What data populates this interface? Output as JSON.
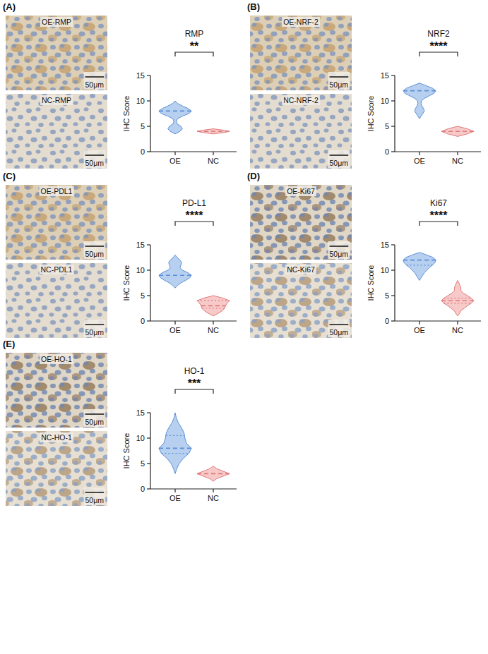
{
  "chart_data": [
    {
      "type": "violin",
      "panel_label": "(A)",
      "title": "RMP",
      "y_label": "IHC Score",
      "significance": "**",
      "images": [
        {
          "label": "OE-RMP",
          "scale_bar": "50μm"
        },
        {
          "label": "NC-RMP",
          "scale_bar": "50μm"
        }
      ],
      "categories": [
        "OE",
        "NC"
      ],
      "colors": [
        "#5b8fd6",
        "#e07a7a"
      ],
      "ylim": [
        0,
        15
      ],
      "yticks": [
        0,
        5,
        10,
        15
      ],
      "violins": [
        {
          "median": 8,
          "y": [
            3.5,
            4,
            4.5,
            5,
            5.5,
            6,
            6.5,
            7,
            7.5,
            8,
            8.5,
            9,
            9.5,
            10
          ],
          "density": [
            0,
            0.3,
            0.45,
            0.35,
            0.12,
            0.08,
            0.15,
            0.45,
            0.85,
            1,
            0.8,
            0.45,
            0.15,
            0
          ]
        },
        {
          "median": 4,
          "y": [
            3.5,
            3.75,
            4,
            4.25,
            4.5
          ],
          "density": [
            0,
            0.6,
            1,
            0.6,
            0
          ]
        }
      ]
    },
    {
      "type": "violin",
      "panel_label": "(B)",
      "title": "NRF2",
      "y_label": "IHC Score",
      "significance": "****",
      "images": [
        {
          "label": "OE-NRF-2",
          "scale_bar": "50μm"
        },
        {
          "label": "NC-NRF-2",
          "scale_bar": "50μm"
        }
      ],
      "categories": [
        "OE",
        "NC"
      ],
      "colors": [
        "#5b8fd6",
        "#e07a7a"
      ],
      "ylim": [
        0,
        15
      ],
      "yticks": [
        0,
        5,
        10,
        15
      ],
      "violins": [
        {
          "median": 12,
          "y": [
            6.5,
            7,
            7.5,
            8,
            8.5,
            9,
            9.5,
            10,
            10.5,
            11,
            11.5,
            12,
            12.5,
            13,
            13.5
          ],
          "density": [
            0,
            0.1,
            0.2,
            0.3,
            0.25,
            0.15,
            0.1,
            0.12,
            0.3,
            0.6,
            0.9,
            1,
            0.8,
            0.4,
            0
          ]
        },
        {
          "median": 4,
          "y": [
            3,
            3.5,
            4,
            4.5,
            5
          ],
          "density": [
            0,
            0.6,
            1,
            0.6,
            0
          ]
        }
      ]
    },
    {
      "type": "violin",
      "panel_label": "(C)",
      "title": "PD-L1",
      "y_label": "IHC Score",
      "significance": "****",
      "images": [
        {
          "label": "OE-PDL1",
          "scale_bar": "50μm"
        },
        {
          "label": "NC-PDL1",
          "scale_bar": "50μm"
        }
      ],
      "categories": [
        "OE",
        "NC"
      ],
      "colors": [
        "#5b8fd6",
        "#e07a7a"
      ],
      "ylim": [
        0,
        15
      ],
      "yticks": [
        0,
        5,
        10,
        15
      ],
      "violins": [
        {
          "median": 9,
          "y": [
            6.5,
            7,
            7.5,
            8,
            8.5,
            9,
            9.5,
            10,
            10.5,
            11,
            11.5,
            12,
            12.5,
            13
          ],
          "density": [
            0,
            0.15,
            0.35,
            0.65,
            0.9,
            1,
            0.8,
            0.45,
            0.3,
            0.35,
            0.4,
            0.3,
            0.12,
            0
          ]
        },
        {
          "median": 3,
          "q1": 2.5,
          "q3": 4,
          "y": [
            1,
            1.5,
            2,
            2.5,
            3,
            3.5,
            4,
            4.5,
            5
          ],
          "density": [
            0,
            0.3,
            0.55,
            0.7,
            0.75,
            0.85,
            1,
            0.6,
            0
          ]
        }
      ]
    },
    {
      "type": "violin",
      "panel_label": "(D)",
      "title": "Ki67",
      "y_label": "IHC Score",
      "significance": "****",
      "images": [
        {
          "label": "OE-Ki67",
          "scale_bar": "50μm"
        },
        {
          "label": "NC-Ki67",
          "scale_bar": "50μm"
        }
      ],
      "categories": [
        "OE",
        "NC"
      ],
      "colors": [
        "#5b8fd6",
        "#e07a7a"
      ],
      "ylim": [
        0,
        15
      ],
      "yticks": [
        0,
        5,
        10,
        15
      ],
      "violins": [
        {
          "median": 12,
          "q1": 11,
          "y": [
            8,
            8.5,
            9,
            9.5,
            10,
            10.5,
            11,
            11.5,
            12,
            12.5,
            13,
            13.5
          ],
          "density": [
            0,
            0.1,
            0.2,
            0.3,
            0.45,
            0.6,
            0.8,
            0.95,
            1,
            0.85,
            0.45,
            0
          ]
        },
        {
          "median": 4,
          "q1": 3.5,
          "q3": 4.5,
          "y": [
            1,
            1.5,
            2,
            2.5,
            3,
            3.5,
            4,
            4.5,
            5,
            5.5,
            6,
            6.5,
            7,
            7.5,
            8
          ],
          "density": [
            0,
            0.12,
            0.2,
            0.4,
            0.6,
            0.85,
            1,
            0.85,
            0.6,
            0.35,
            0.2,
            0.2,
            0.15,
            0.08,
            0
          ]
        }
      ]
    },
    {
      "type": "violin",
      "panel_label": "(E)",
      "title": "HO-1",
      "y_label": "IHC Score",
      "significance": "***",
      "images": [
        {
          "label": "OE-HO-1",
          "scale_bar": "50μm"
        },
        {
          "label": "NC-HO-1",
          "scale_bar": "50μm"
        }
      ],
      "categories": [
        "OE",
        "NC"
      ],
      "colors": [
        "#5b8fd6",
        "#e07a7a"
      ],
      "ylim": [
        0,
        15
      ],
      "yticks": [
        0,
        5,
        10,
        15
      ],
      "violins": [
        {
          "median": 8,
          "q1": 7,
          "q3": 10.5,
          "y": [
            3,
            4,
            5,
            6,
            7,
            8,
            9,
            10,
            11,
            12,
            13,
            14,
            15
          ],
          "density": [
            0,
            0.1,
            0.25,
            0.5,
            0.85,
            1,
            0.7,
            0.6,
            0.55,
            0.4,
            0.2,
            0.07,
            0
          ]
        },
        {
          "median": 3,
          "y": [
            1.5,
            2,
            2.5,
            3,
            3.5,
            4,
            4.5
          ],
          "density": [
            0,
            0.2,
            0.6,
            1,
            0.6,
            0.2,
            0
          ]
        }
      ]
    }
  ]
}
